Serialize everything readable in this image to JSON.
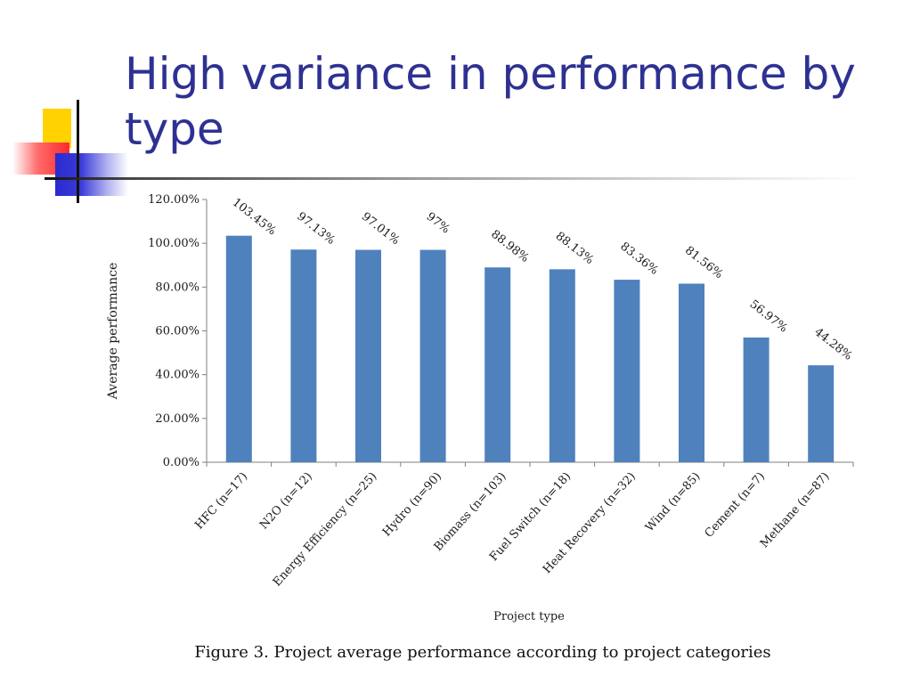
{
  "slide": {
    "title": "High variance in performance by type"
  },
  "colors": {
    "title": "#2e3192",
    "bar": "#4f81bd"
  },
  "chart_data": {
    "type": "bar",
    "title": "",
    "xlabel": "Project type",
    "ylabel": "Average performance",
    "categories": [
      "HFC (n=17)",
      "N2O (n=12)",
      "Energy Efficiency (n=25)",
      "Hydro (n=90)",
      "Biomass (n=103)",
      "Fuel Switch (n=18)",
      "Heat Recovery (n=32)",
      "Wind (n=85)",
      "Cement (n=7)",
      "Methane (n=87)"
    ],
    "values": [
      103.45,
      97.13,
      97.01,
      97,
      88.98,
      88.13,
      83.36,
      81.56,
      56.97,
      44.28
    ],
    "data_labels": [
      "103.45%",
      "97.13%",
      "97.01%",
      "97%",
      "88.98%",
      "88.13%",
      "83.36%",
      "81.56%",
      "56.97%",
      "44.28%"
    ],
    "ylim": [
      0,
      120
    ],
    "y_ticks": [
      "0.00%",
      "20.00%",
      "40.00%",
      "60.00%",
      "80.00%",
      "100.00%",
      "120.00%"
    ],
    "grid": false,
    "legend": "none",
    "caption": "Figure 3. Project average performance according to project categories"
  }
}
